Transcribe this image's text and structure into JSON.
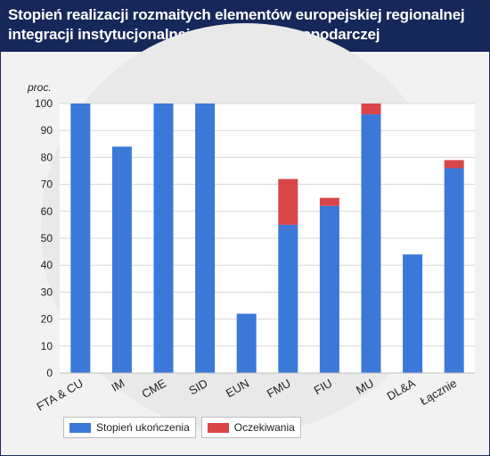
{
  "title": "Stopień realizacji rozmaitych elementów europejskiej regionalnej integracji instytucjonalnej w dziedzinie gospodarczej",
  "colors": {
    "header_bg": "#16275a",
    "completion": "#3b78d8",
    "expectation": "#d9464a",
    "plot_bg": "#ffffff",
    "grid": "#d9d9d9"
  },
  "chart_data": {
    "type": "bar",
    "stacked": true,
    "ylabel": "proc.",
    "ylim": [
      0,
      100
    ],
    "yticks": [
      0,
      10,
      20,
      30,
      40,
      50,
      60,
      70,
      80,
      90,
      100
    ],
    "categories": [
      "FTA & CU",
      "IM",
      "CME",
      "SID",
      "EUN",
      "FMU",
      "FIU",
      "MU",
      "DL&A",
      "Łącznie"
    ],
    "series": [
      {
        "name": "Stopień ukończenia",
        "color": "#3b78d8",
        "values": [
          100,
          84,
          100,
          100,
          22,
          55,
          62,
          96,
          44,
          76
        ]
      },
      {
        "name": "Oczekiwania",
        "color": "#d9464a",
        "values": [
          0,
          0,
          0,
          0,
          0,
          17,
          3,
          4,
          0,
          3
        ]
      }
    ],
    "grid": true,
    "legend_position": "bottom-left"
  }
}
